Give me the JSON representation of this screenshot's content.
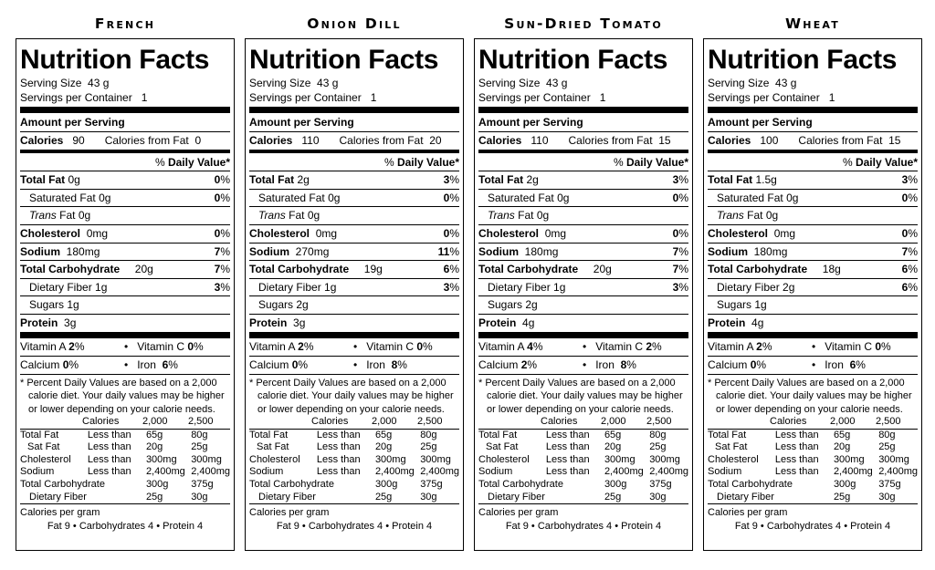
{
  "common": {
    "title": "Nutrition Facts",
    "serving_size_label": "Serving Size",
    "serving_size": "43 g",
    "servings_label": "Servings per Container",
    "servings": "1",
    "amount_per_serving": "Amount per Serving",
    "calories_label": "Calories",
    "calories_from_fat_label": "Calories from Fat",
    "dv_percent": "%",
    "dv_label": "Daily Value*",
    "total_fat_label": "Total Fat",
    "sat_fat_label": "Saturated Fat",
    "trans_label": "Trans",
    "fat_label": "Fat",
    "cholesterol_label": "Cholesterol",
    "sodium_label": "Sodium",
    "carb_label": "Total Carbohydrate",
    "fiber_label": "Dietary Fiber",
    "sugars_label": "Sugars",
    "protein_label": "Protein",
    "vitamin_a_label": "Vitamin A",
    "vitamin_c_label": "Vitamin C",
    "calcium_label": "Calcium",
    "iron_label": "Iron",
    "bullet": "•",
    "footnote_1": "* Percent Daily Values are based on a 2,000",
    "footnote_2": "calorie diet. Your daily values may be higher",
    "footnote_3": "or lower depending on your calorie needs.",
    "dv_table_header": [
      "",
      "Calories",
      "2,000",
      "2,500"
    ],
    "dv_table_rows": [
      [
        "Total Fat",
        "Less than",
        "65g",
        "80g"
      ],
      [
        "Sat Fat",
        "Less than",
        "20g",
        "25g"
      ],
      [
        "Cholesterol",
        "Less than",
        "300mg",
        "300mg"
      ],
      [
        "Sodium",
        "Less than",
        "2,400mg",
        "2,400mg"
      ],
      [
        "Total Carbohydrate",
        "",
        "300g",
        "375g"
      ],
      [
        "Dietary Fiber",
        "",
        "25g",
        "30g"
      ]
    ],
    "cal_per_gram": "Calories per gram",
    "cal_per_gram_line": "Fat 9  •  Carbohydrates 4  •  Protein 4"
  },
  "labels": [
    {
      "flavor": "French",
      "calories": "90",
      "calories_from_fat": "0",
      "total_fat": "0g",
      "total_fat_dv": "0",
      "sat_fat": "0g",
      "sat_fat_dv": "0",
      "trans_fat": "0g",
      "cholesterol": "0mg",
      "cholesterol_dv": "0",
      "sodium": "180mg",
      "sodium_dv": "7",
      "carb": "20g",
      "carb_dv": "7",
      "fiber": "1g",
      "fiber_dv": "3",
      "sugars": "1g",
      "protein": "3g",
      "vitamin_a": "2",
      "vitamin_c": "0",
      "calcium": "0",
      "iron": "6"
    },
    {
      "flavor": "Onion Dill",
      "calories": "110",
      "calories_from_fat": "20",
      "total_fat": "2g",
      "total_fat_dv": "3",
      "sat_fat": "0g",
      "sat_fat_dv": "0",
      "trans_fat": "0g",
      "cholesterol": "0mg",
      "cholesterol_dv": "0",
      "sodium": "270mg",
      "sodium_dv": "11",
      "carb": "19g",
      "carb_dv": "6",
      "fiber": "1g",
      "fiber_dv": "3",
      "sugars": "2g",
      "protein": "3g",
      "vitamin_a": "2",
      "vitamin_c": "0",
      "calcium": "0",
      "iron": "8"
    },
    {
      "flavor": "Sun-Dried Tomato",
      "calories": "110",
      "calories_from_fat": "15",
      "total_fat": "2g",
      "total_fat_dv": "3",
      "sat_fat": "0g",
      "sat_fat_dv": "0",
      "trans_fat": "0g",
      "cholesterol": "0mg",
      "cholesterol_dv": "0",
      "sodium": "180mg",
      "sodium_dv": "7",
      "carb": "20g",
      "carb_dv": "7",
      "fiber": "1g",
      "fiber_dv": "3",
      "sugars": "2g",
      "protein": "4g",
      "vitamin_a": "4",
      "vitamin_c": "2",
      "calcium": "2",
      "iron": "8"
    },
    {
      "flavor": "Wheat",
      "calories": "100",
      "calories_from_fat": "15",
      "total_fat": "1.5g",
      "total_fat_dv": "3",
      "sat_fat": "0g",
      "sat_fat_dv": "0",
      "trans_fat": "0g",
      "cholesterol": "0mg",
      "cholesterol_dv": "0",
      "sodium": "180mg",
      "sodium_dv": "7",
      "carb": "18g",
      "carb_dv": "6",
      "fiber": "2g",
      "fiber_dv": "6",
      "sugars": "1g",
      "protein": "4g",
      "vitamin_a": "2",
      "vitamin_c": "0",
      "calcium": "0",
      "iron": "6"
    }
  ]
}
